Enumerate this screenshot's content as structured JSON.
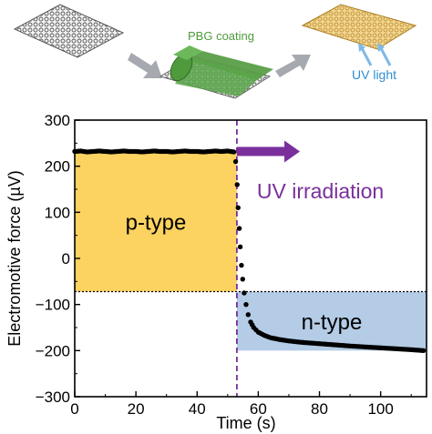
{
  "schematic": {
    "coating_label": "PBG coating",
    "light_label": "UV light",
    "colors": {
      "coating": "#4e9a3c",
      "light": "#2f8fd1",
      "mesh": "#555555",
      "tinted": "#e9c46a",
      "arrow": "#a6aab0"
    },
    "icons": [
      "mesh-sheet-icon",
      "coating-roller-icon",
      "uv-treated-sheet-icon",
      "process-arrow-icon",
      "uv-light-arrow-icon"
    ]
  },
  "chart_data": {
    "type": "scatter",
    "xlabel": "Time (s)",
    "ylabel": "Electromotive force (µV)",
    "xlim": [
      0,
      115
    ],
    "ylim": [
      -300,
      300
    ],
    "xticks": [
      0,
      20,
      40,
      60,
      80,
      100
    ],
    "yticks": [
      300,
      200,
      100,
      0,
      -100,
      -200,
      -300
    ],
    "grid": false,
    "series": [
      {
        "color": "#000000",
        "x": [
          0,
          2,
          4,
          6,
          8,
          10,
          12,
          14,
          16,
          18,
          20,
          22,
          24,
          26,
          28,
          30,
          32,
          34,
          36,
          38,
          40,
          42,
          44,
          46,
          48,
          50,
          52,
          52.6,
          53.1,
          53.4,
          53.8,
          54.1,
          54.5,
          54.9,
          55.4,
          56,
          56.7,
          57.5,
          58.5,
          60,
          62,
          64,
          67,
          70,
          74,
          78,
          82,
          86,
          90,
          95,
          100,
          105,
          110,
          114
        ],
        "y": [
          232,
          233,
          231,
          232,
          233,
          232,
          231,
          232,
          233,
          232,
          232,
          231,
          232,
          233,
          232,
          232,
          231,
          232,
          233,
          232,
          232,
          231,
          232,
          233,
          232,
          233,
          231,
          210,
          160,
          110,
          65,
          25,
          -15,
          -45,
          -75,
          -100,
          -122,
          -138,
          -150,
          -160,
          -167,
          -172,
          -176,
          -179,
          -182,
          -184,
          -186,
          -188,
          -190,
          -192,
          -194,
          -196,
          -198,
          -200
        ]
      }
    ],
    "regions": [
      {
        "label": "p-type",
        "x": [
          0,
          53
        ],
        "y": [
          -72,
          232
        ],
        "color": "#fcd260"
      },
      {
        "label": "n-type",
        "x": [
          53,
          115
        ],
        "y": [
          -200,
          -72
        ],
        "color": "#b4cce6"
      }
    ],
    "reference_lines": [
      {
        "orientation": "horizontal",
        "value": -72,
        "style": "dotted",
        "color": "#000000"
      },
      {
        "orientation": "vertical",
        "value": 53,
        "style": "dashed",
        "color": "#7a2f9b"
      }
    ],
    "annotations": [
      {
        "text": "UV irradiation",
        "color": "#7a2f9b",
        "arrow_x": [
          53,
          73
        ],
        "arrow_y": 232
      }
    ]
  }
}
